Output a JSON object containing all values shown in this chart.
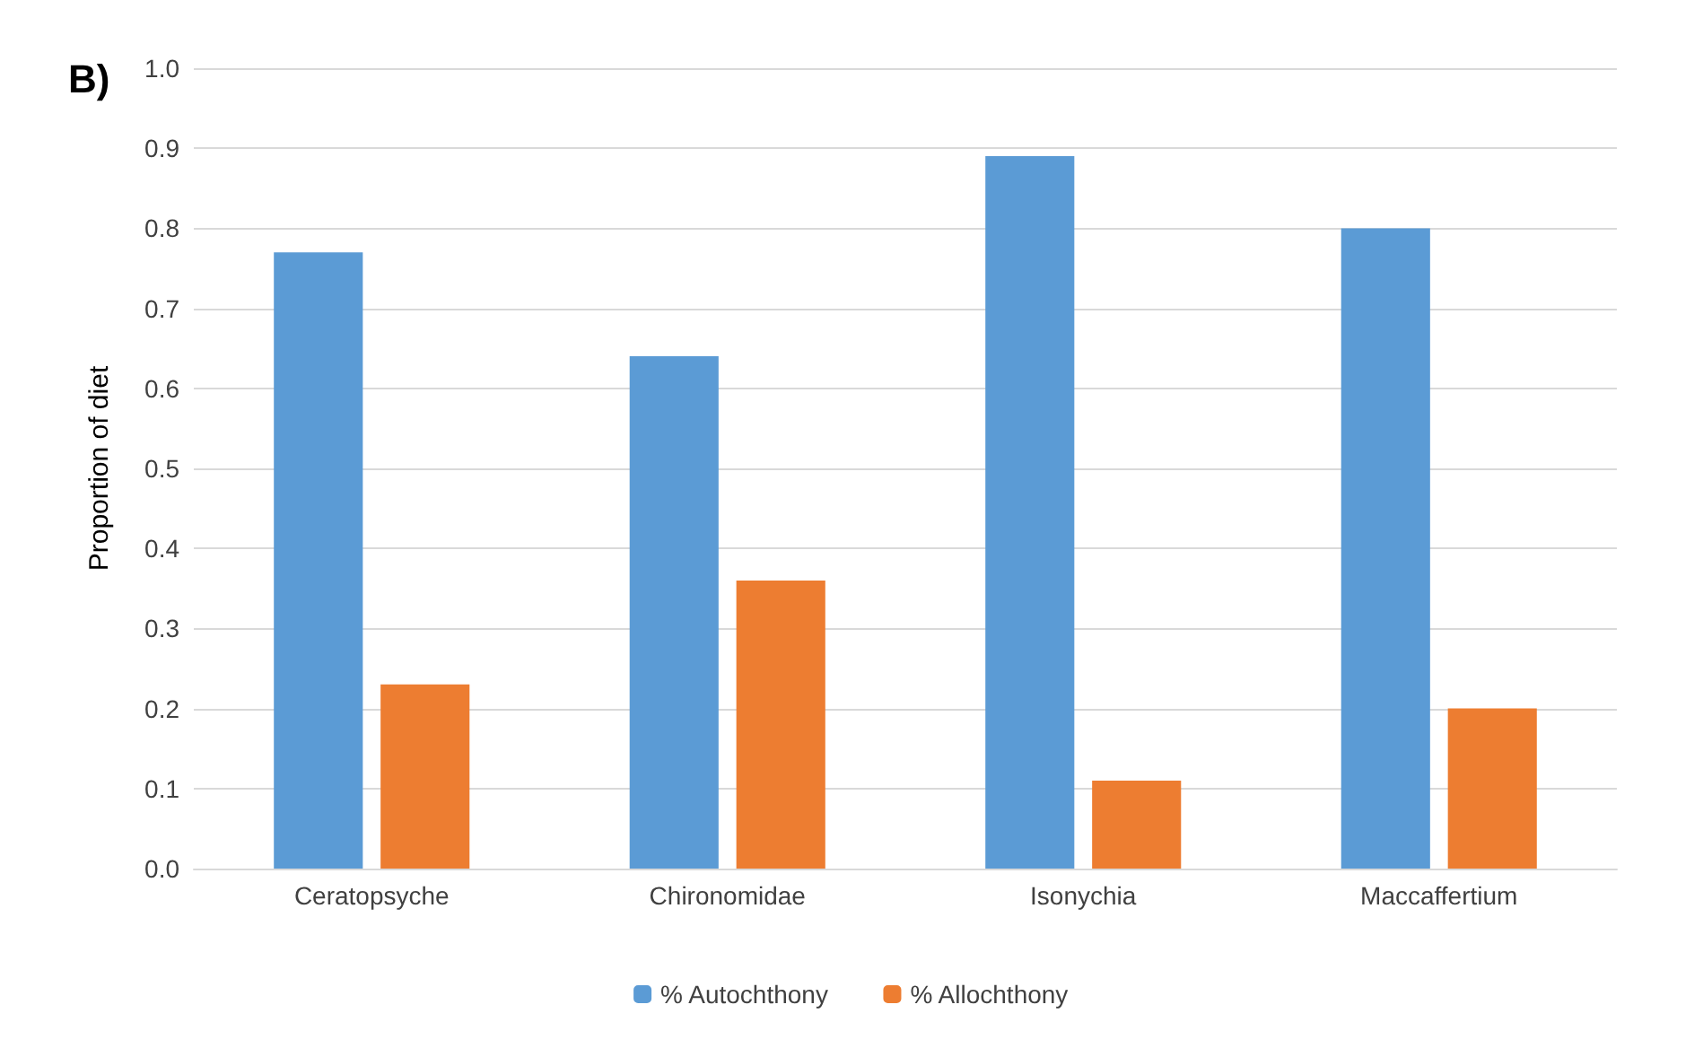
{
  "chart_data": {
    "type": "bar",
    "title": "B)",
    "ylabel": "Proportion of diet",
    "categories": [
      "Ceratopsyche",
      "Chironomidae",
      "Isonychia",
      "Maccaffertium"
    ],
    "series": [
      {
        "name": "% Autochthony",
        "color": "#5b9bd5",
        "values": [
          0.77,
          0.64,
          0.89,
          0.8
        ]
      },
      {
        "name": "% Allochthony",
        "color": "#ed7d31",
        "values": [
          0.23,
          0.36,
          0.11,
          0.2
        ]
      }
    ],
    "ylim": [
      0,
      1
    ],
    "yticks": [
      {
        "value": 0,
        "label": "0.0"
      },
      0.1,
      0.2,
      0.3,
      0.4,
      0.5,
      0.6,
      0.7,
      0.8,
      0.9,
      {
        "value": 1,
        "label": "1.0"
      }
    ],
    "grid": "y",
    "legend": "bottom"
  }
}
